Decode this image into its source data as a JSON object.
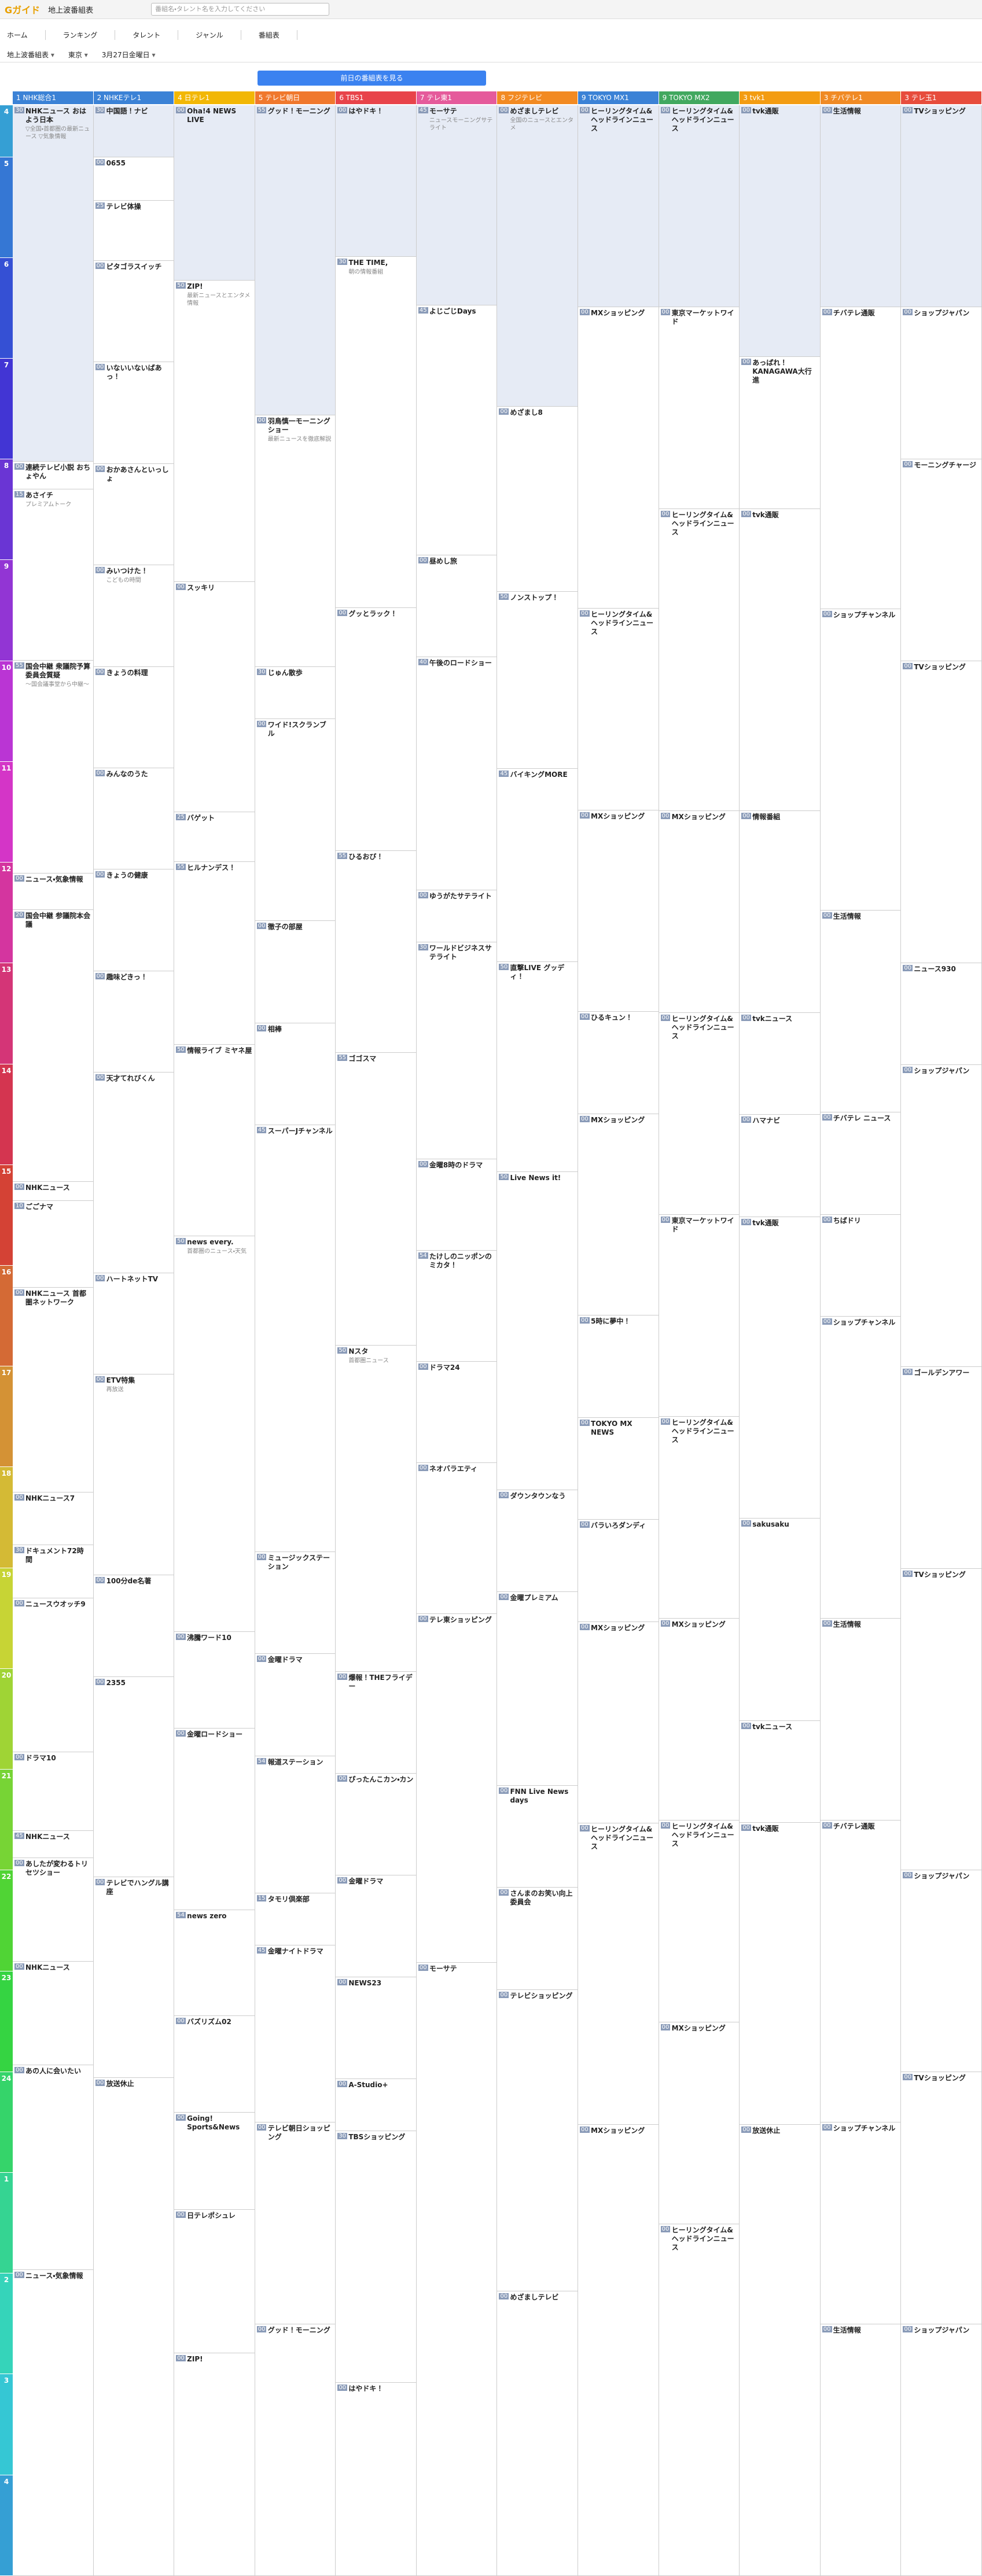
{
  "header": {
    "logo": "Gガイド",
    "title": "地上波番組表",
    "search": "番組名・タレント名を入力してください"
  },
  "nav": [
    "ホーム",
    "ランキング",
    "タレント",
    "ジャンル",
    "番組表"
  ],
  "selects": [
    "地上波番組表",
    "東京",
    "3月27日金曜日"
  ],
  "button": "前日の番組表を見る",
  "hours": [
    4,
    5,
    6,
    7,
    8,
    9,
    10,
    11,
    12,
    13,
    14,
    15,
    16,
    17,
    18,
    19,
    20,
    21,
    22,
    23,
    24,
    1,
    2,
    3,
    4
  ],
  "channels": [
    {
      "num": "1",
      "name": "NHK総合1",
      "color": "#3b82d6",
      "programs": [
        {
          "min": "30",
          "title": "NHKニュース おはよう日本",
          "desc": "▽全国・首都圏の最新ニュース ▽気象情報"
        },
        {
          "min": "00",
          "title": "連続テレビ小説 おちょやん"
        },
        {
          "min": "15",
          "title": "あさイチ",
          "desc": "プレミアムトーク"
        },
        {
          "min": "55",
          "title": "国会中継 衆議院予算委員会質疑",
          "desc": "～国会議事堂から中継～"
        },
        {
          "min": "00",
          "title": "ニュース・気象情報"
        },
        {
          "min": "20",
          "title": "国会中継 参議院本会議"
        },
        {
          "min": "00",
          "title": "NHKニュース"
        },
        {
          "min": "10",
          "title": "ごごナマ"
        },
        {
          "min": "00",
          "title": "NHKニュース 首都圏ネットワーク"
        },
        {
          "min": "00",
          "title": "NHKニュース7"
        },
        {
          "min": "30",
          "title": "ドキュメント72時間"
        },
        {
          "min": "00",
          "title": "ニュースウオッチ9"
        },
        {
          "min": "00",
          "title": "ドラマ10"
        },
        {
          "min": "45",
          "title": "NHKニュース"
        },
        {
          "min": "00",
          "title": "あしたが変わるトリセツショー"
        },
        {
          "min": "00",
          "title": "NHKニュース"
        },
        {
          "min": "00",
          "title": "あの人に会いたい"
        },
        {
          "min": "00",
          "title": "ニュース・気象情報"
        }
      ]
    },
    {
      "num": "2",
      "name": "NHKEテレ1",
      "color": "#3b82d6",
      "programs": [
        {
          "min": "30",
          "title": "中国語！ナビ"
        },
        {
          "min": "00",
          "title": "0655"
        },
        {
          "min": "25",
          "title": "テレビ体操"
        },
        {
          "min": "00",
          "title": "ピタゴラスイッチ"
        },
        {
          "min": "00",
          "title": "いないいないばあっ！"
        },
        {
          "min": "00",
          "title": "おかあさんといっしょ"
        },
        {
          "min": "00",
          "title": "みいつけた！",
          "desc": "こどもの時間"
        },
        {
          "min": "00",
          "title": "きょうの料理"
        },
        {
          "min": "00",
          "title": "みんなのうた"
        },
        {
          "min": "00",
          "title": "きょうの健康"
        },
        {
          "min": "00",
          "title": "趣味どきっ！"
        },
        {
          "min": "00",
          "title": "天才てれびくん"
        },
        {
          "min": "00",
          "title": "ハートネットTV"
        },
        {
          "min": "00",
          "title": "ETV特集",
          "desc": "再放送"
        },
        {
          "min": "00",
          "title": "100分de名著"
        },
        {
          "min": "00",
          "title": "2355"
        },
        {
          "min": "00",
          "title": "テレビでハングル講座"
        },
        {
          "min": "00",
          "title": "放送休止"
        }
      ]
    },
    {
      "num": "4",
      "name": "日テレ1",
      "color": "#f2b705",
      "programs": [
        {
          "min": "00",
          "title": "Oha!4 NEWS LIVE"
        },
        {
          "min": "50",
          "title": "ZIP!",
          "desc": "最新ニュースとエンタメ情報"
        },
        {
          "min": "00",
          "title": "スッキリ"
        },
        {
          "min": "25",
          "title": "バゲット"
        },
        {
          "min": "55",
          "title": "ヒルナンデス！"
        },
        {
          "min": "50",
          "title": "情報ライブ ミヤネ屋"
        },
        {
          "min": "50",
          "title": "news every.",
          "desc": "首都圏のニュース・天気"
        },
        {
          "min": "00",
          "title": "沸騰ワード10"
        },
        {
          "min": "00",
          "title": "金曜ロードショー"
        },
        {
          "min": "54",
          "title": "news zero"
        },
        {
          "min": "00",
          "title": "バズリズム02"
        },
        {
          "min": "00",
          "title": "Going! Sports&News"
        },
        {
          "min": "00",
          "title": "日テレポシュレ"
        },
        {
          "min": "00",
          "title": "ZIP!"
        }
      ]
    },
    {
      "num": "5",
      "name": "テレビ朝日",
      "color": "#f0782d",
      "programs": [
        {
          "min": "55",
          "title": "グッド！モーニング"
        },
        {
          "min": "00",
          "title": "羽鳥慎一モーニングショー",
          "desc": "最新ニュースを徹底解説"
        },
        {
          "min": "30",
          "title": "じゅん散歩"
        },
        {
          "min": "00",
          "title": "ワイド!スクランブル"
        },
        {
          "min": "00",
          "title": "徹子の部屋"
        },
        {
          "min": "00",
          "title": "相棒"
        },
        {
          "min": "45",
          "title": "スーパーJチャンネル"
        },
        {
          "min": "00",
          "title": "ミュージックステーション"
        },
        {
          "min": "00",
          "title": "金曜ドラマ"
        },
        {
          "min": "54",
          "title": "報道ステーション"
        },
        {
          "min": "15",
          "title": "タモリ倶楽部"
        },
        {
          "min": "45",
          "title": "金曜ナイトドラマ"
        },
        {
          "min": "00",
          "title": "テレビ朝日ショッピング"
        },
        {
          "min": "00",
          "title": "グッド！モーニング"
        }
      ]
    },
    {
      "num": "6",
      "name": "TBS1",
      "color": "#e8434a",
      "programs": [
        {
          "min": "00",
          "title": "はやドキ！"
        },
        {
          "min": "30",
          "title": "THE TIME,",
          "desc": "朝の情報番組"
        },
        {
          "min": "00",
          "title": "グッとラック！"
        },
        {
          "min": "55",
          "title": "ひるおび！"
        },
        {
          "min": "55",
          "title": "ゴゴスマ"
        },
        {
          "min": "50",
          "title": "Nスタ",
          "desc": "首都圏ニュース"
        },
        {
          "min": "00",
          "title": "爆報！THEフライデー"
        },
        {
          "min": "00",
          "title": "ぴったんこカン・カン"
        },
        {
          "min": "00",
          "title": "金曜ドラマ"
        },
        {
          "min": "00",
          "title": "NEWS23"
        },
        {
          "min": "00",
          "title": "A-Studio+"
        },
        {
          "min": "30",
          "title": "TBSショッピング"
        },
        {
          "min": "00",
          "title": "はやドキ！"
        }
      ]
    },
    {
      "num": "7",
      "name": "テレ東1",
      "color": "#e55a9b",
      "programs": [
        {
          "min": "45",
          "title": "モーサテ",
          "desc": "ニュースモーニングサテライト"
        },
        {
          "min": "45",
          "title": "よじごじDays"
        },
        {
          "min": "00",
          "title": "昼めし旅"
        },
        {
          "min": "40",
          "title": "午後のロードショー"
        },
        {
          "min": "00",
          "title": "ゆうがたサテライト"
        },
        {
          "min": "30",
          "title": "ワールドビジネスサテライト"
        },
        {
          "min": "00",
          "title": "金曜8時のドラマ"
        },
        {
          "min": "54",
          "title": "たけしのニッポンのミカタ！"
        },
        {
          "min": "00",
          "title": "ドラマ24"
        },
        {
          "min": "00",
          "title": "ネオバラエティ"
        },
        {
          "min": "00",
          "title": "テレ東ショッピング"
        },
        {
          "min": "00",
          "title": "モーサテ"
        }
      ]
    },
    {
      "num": "8",
      "name": "フジテレビ",
      "color": "#f28a22",
      "programs": [
        {
          "min": "00",
          "title": "めざましテレビ",
          "desc": "全国のニュースとエンタメ"
        },
        {
          "min": "00",
          "title": "めざまし8"
        },
        {
          "min": "50",
          "title": "ノンストップ！"
        },
        {
          "min": "45",
          "title": "バイキングMORE"
        },
        {
          "min": "50",
          "title": "直撃LIVE グッディ！"
        },
        {
          "min": "50",
          "title": "Live News it!"
        },
        {
          "min": "00",
          "title": "ダウンタウンなう"
        },
        {
          "min": "00",
          "title": "金曜プレミアム"
        },
        {
          "min": "00",
          "title": "FNN Live News days"
        },
        {
          "min": "00",
          "title": "さんまのお笑い向上委員会"
        },
        {
          "min": "00",
          "title": "テレビショッピング"
        },
        {
          "min": "00",
          "title": "めざましテレビ"
        }
      ]
    },
    {
      "num": "9",
      "name": "TOKYO MX1",
      "color": "#3b82d6",
      "programs": [
        {
          "min": "00",
          "title": "ヒーリングタイム&ヘッドラインニュース"
        },
        {
          "min": "00",
          "title": "MXショッピング"
        },
        {
          "min": "00",
          "title": "ヒーリングタイム&ヘッドラインニュース"
        },
        {
          "min": "00",
          "title": "MXショッピング"
        },
        {
          "min": "00",
          "title": "ひるキュン！"
        },
        {
          "min": "00",
          "title": "MXショッピング"
        },
        {
          "min": "00",
          "title": "5時に夢中！"
        },
        {
          "min": "00",
          "title": "TOKYO MX NEWS"
        },
        {
          "min": "00",
          "title": "バラいろダンディ"
        },
        {
          "min": "00",
          "title": "MXショッピング"
        },
        {
          "min": "00",
          "title": "ヒーリングタイム&ヘッドラインニュース"
        },
        {
          "min": "00",
          "title": "MXショッピング"
        }
      ]
    },
    {
      "num": "9",
      "name": "TOKYO MX2",
      "color": "#41a85f",
      "programs": [
        {
          "min": "00",
          "title": "ヒーリングタイム&ヘッドラインニュース"
        },
        {
          "min": "00",
          "title": "東京マーケットワイド"
        },
        {
          "min": "00",
          "title": "ヒーリングタイム&ヘッドラインニュース"
        },
        {
          "min": "00",
          "title": "MXショッピング"
        },
        {
          "min": "00",
          "title": "ヒーリングタイム&ヘッドラインニュース"
        },
        {
          "min": "00",
          "title": "東京マーケットワイド"
        },
        {
          "min": "00",
          "title": "ヒーリングタイム&ヘッドラインニュース"
        },
        {
          "min": "00",
          "title": "MXショッピング"
        },
        {
          "min": "00",
          "title": "ヒーリングタイム&ヘッドラインニュース"
        },
        {
          "min": "00",
          "title": "MXショッピング"
        },
        {
          "min": "00",
          "title": "ヒーリングタイム&ヘッドラインニュース"
        }
      ]
    },
    {
      "num": "3",
      "name": "tvk1",
      "color": "#f39c12",
      "programs": [
        {
          "min": "00",
          "title": "tvk通販"
        },
        {
          "min": "00",
          "title": "あっぱれ！KANAGAWA大行進"
        },
        {
          "min": "00",
          "title": "tvk通販"
        },
        {
          "min": "00",
          "title": "情報番組"
        },
        {
          "min": "00",
          "title": "tvkニュース"
        },
        {
          "min": "00",
          "title": "ハマナビ"
        },
        {
          "min": "00",
          "title": "tvk通販"
        },
        {
          "min": "00",
          "title": "sakusaku"
        },
        {
          "min": "00",
          "title": "tvkニュース"
        },
        {
          "min": "00",
          "title": "tvk通販"
        },
        {
          "min": "00",
          "title": "放送休止"
        }
      ]
    },
    {
      "num": "3",
      "name": "チバテレ1",
      "color": "#f08a24",
      "programs": [
        {
          "min": "00",
          "title": "生活情報"
        },
        {
          "min": "00",
          "title": "チバテレ通販"
        },
        {
          "min": "00",
          "title": "ショップチャンネル"
        },
        {
          "min": "00",
          "title": "生活情報"
        },
        {
          "min": "00",
          "title": "チバテレ ニュース"
        },
        {
          "min": "00",
          "title": "ちばドリ"
        },
        {
          "min": "00",
          "title": "ショップチャンネル"
        },
        {
          "min": "00",
          "title": "生活情報"
        },
        {
          "min": "00",
          "title": "チバテレ通販"
        },
        {
          "min": "00",
          "title": "ショップチャンネル"
        },
        {
          "min": "00",
          "title": "生活情報"
        }
      ]
    },
    {
      "num": "3",
      "name": "テレ玉1",
      "color": "#e74c3c",
      "programs": [
        {
          "min": "00",
          "title": "TVショッピング"
        },
        {
          "min": "00",
          "title": "ショップジャパン"
        },
        {
          "min": "00",
          "title": "モーニングチャージ"
        },
        {
          "min": "00",
          "title": "TVショッピング"
        },
        {
          "min": "00",
          "title": "ニュース930"
        },
        {
          "min": "00",
          "title": "ショップジャパン"
        },
        {
          "min": "00",
          "title": "ゴールデンアワー"
        },
        {
          "min": "00",
          "title": "TVショッピング"
        },
        {
          "min": "00",
          "title": "ショップジャパン"
        },
        {
          "min": "00",
          "title": "TVショッピング"
        },
        {
          "min": "00",
          "title": "ショップジャパン"
        }
      ]
    }
  ]
}
